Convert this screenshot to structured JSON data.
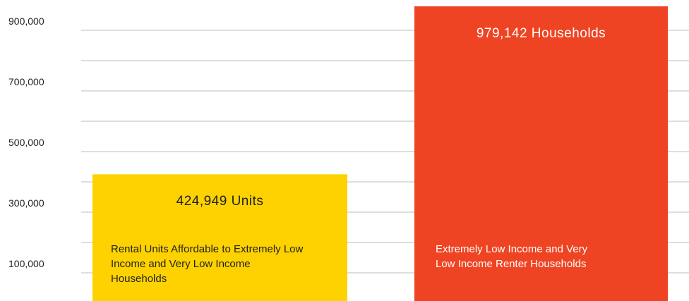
{
  "chart_data": {
    "type": "bar",
    "categories": [
      "Rental Units Affordable to Extremely Low Income and Very Low Income Households",
      "Extremely Low Income and Very Low Income Renter Households"
    ],
    "values": [
      424949,
      979142
    ],
    "value_labels": [
      "424,949 Units",
      "979,142 Households"
    ],
    "colors": [
      "#fdd200",
      "#ef4423"
    ],
    "ylim": [
      0,
      1000000
    ],
    "yticks": [
      {
        "value": 100000,
        "label": "100,000"
      },
      {
        "value": 300000,
        "label": "300,000"
      },
      {
        "value": 500000,
        "label": "500,000"
      },
      {
        "value": 700000,
        "label": "700,000"
      },
      {
        "value": 900000,
        "label": "900,000"
      }
    ],
    "minor_yticks": [
      200000,
      400000,
      600000,
      800000
    ],
    "grid": true
  }
}
